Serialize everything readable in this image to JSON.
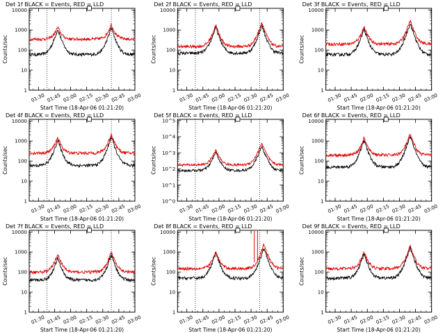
{
  "colors": {
    "events": "#000000",
    "lld": "#e00000",
    "frame": "#000000"
  },
  "layout": {
    "rows": 3,
    "cols": 3
  },
  "chart_data": [
    {
      "type": "line",
      "title": "Det 1f BLACK = Events, RED = LLD",
      "xlabel": "Start Time (18-Apr-06 01:21:20)",
      "ylabel": "Counts/sec",
      "y_scale": "log",
      "ylim": [
        1,
        12000
      ],
      "xlim": [
        "01:21:20",
        "03:00:00"
      ],
      "xticks": [
        "01:30",
        "01:45",
        "02:00",
        "02:15",
        "02:30",
        "02:45",
        "03:00"
      ],
      "yticks": [
        "1",
        "10",
        "100",
        "1000",
        "10000"
      ],
      "markers": [
        "01:38",
        "02:38"
      ],
      "series": [
        {
          "key": "events",
          "role": "events",
          "baseline": 60,
          "peaks": [
            {
              "t": "01:48",
              "v": 1100
            },
            {
              "t": "02:38",
              "v": 1300
            }
          ]
        },
        {
          "key": "lld",
          "role": "lld",
          "baseline": 350,
          "peaks": [
            {
              "t": "01:48",
              "v": 1400
            },
            {
              "t": "02:38",
              "v": 1900
            }
          ]
        }
      ]
    },
    {
      "type": "line",
      "title": "Det 2f BLACK = Events, RED = LLD",
      "xlabel": "Start Time (18-Apr-06 01:21:20)",
      "ylabel": "Counts/sec",
      "y_scale": "log",
      "ylim": [
        1,
        12000
      ],
      "xlim": [
        "01:21:20",
        "03:00:00"
      ],
      "xticks": [
        "01:30",
        "01:45",
        "02:00",
        "02:15",
        "02:30",
        "02:45",
        "03:00"
      ],
      "yticks": [
        "1",
        "10",
        "100",
        "1000",
        "10000"
      ],
      "markers": [
        "01:38",
        "02:38"
      ],
      "series": [
        {
          "key": "events",
          "role": "events",
          "baseline": 70,
          "peaks": [
            {
              "t": "01:57",
              "v": 1400
            },
            {
              "t": "02:40",
              "v": 1700
            }
          ]
        },
        {
          "key": "lld",
          "role": "lld",
          "baseline": 150,
          "peaks": [
            {
              "t": "01:57",
              "v": 1800
            },
            {
              "t": "02:40",
              "v": 2400
            }
          ]
        }
      ]
    },
    {
      "type": "line",
      "title": "Det 3f BLACK = Events, RED = LLD",
      "xlabel": "Start Time (18-Apr-06 01:21:20)",
      "ylabel": "Counts/sec",
      "y_scale": "log",
      "ylim": [
        1,
        12000
      ],
      "xlim": [
        "01:21:20",
        "03:00:00"
      ],
      "xticks": [
        "01:30",
        "01:45",
        "02:00",
        "02:15",
        "02:30",
        "02:45",
        "03:00"
      ],
      "yticks": [
        "1",
        "10",
        "100",
        "1000",
        "10000"
      ],
      "markers": [],
      "series": [
        {
          "key": "events",
          "role": "events",
          "baseline": 60,
          "peaks": [
            {
              "t": "01:57",
              "v": 1100
            },
            {
              "t": "02:40",
              "v": 2200
            }
          ]
        },
        {
          "key": "lld",
          "role": "lld",
          "baseline": 200,
          "peaks": [
            {
              "t": "01:57",
              "v": 1500
            },
            {
              "t": "02:40",
              "v": 3000
            }
          ]
        }
      ]
    },
    {
      "type": "line",
      "title": "Det 4f BLACK = Events, RED = LLD",
      "xlabel": "Start Time (18-Apr-06 01:21:20)",
      "ylabel": "Counts/sec",
      "y_scale": "log",
      "ylim": [
        1,
        12000
      ],
      "xlim": [
        "01:21:20",
        "03:00:00"
      ],
      "xticks": [
        "01:30",
        "01:45",
        "02:00",
        "02:15",
        "02:30",
        "02:45",
        "03:00"
      ],
      "yticks": [
        "1",
        "10",
        "100",
        "1000",
        "10000"
      ],
      "markers": [
        "01:38",
        "02:38"
      ],
      "series": [
        {
          "key": "events",
          "role": "events",
          "baseline": 60,
          "peaks": [
            {
              "t": "01:48",
              "v": 1100
            },
            {
              "t": "02:38",
              "v": 1600
            }
          ]
        },
        {
          "key": "lld",
          "role": "lld",
          "baseline": 250,
          "peaks": [
            {
              "t": "01:48",
              "v": 1500
            },
            {
              "t": "02:38",
              "v": 2200
            }
          ]
        }
      ]
    },
    {
      "type": "line",
      "title": "Det 5f BLACK = Events, RED = LLD",
      "xlabel": "Start Time (18-Apr-06 01:21:20)",
      "ylabel": "Counts/sec",
      "y_scale": "log",
      "ylim": [
        1,
        120000
      ],
      "xlim": [
        "01:21:20",
        "03:00:00"
      ],
      "xticks": [
        "01:30",
        "01:45",
        "02:00",
        "02:15",
        "02:30",
        "02:45",
        "03:00"
      ],
      "yticks": [
        "10^0",
        "10^1",
        "10^2",
        "10^3",
        "10^4",
        "10^5"
      ],
      "markers": [
        "01:38",
        "02:38"
      ],
      "series": [
        {
          "key": "events",
          "role": "events",
          "baseline": 80,
          "peaks": [
            {
              "t": "01:57",
              "v": 1100
            },
            {
              "t": "02:40",
              "v": 2500
            }
          ]
        },
        {
          "key": "lld",
          "role": "lld",
          "baseline": 180,
          "peaks": [
            {
              "t": "01:57",
              "v": 1500
            },
            {
              "t": "02:40",
              "v": 4000
            }
          ]
        }
      ]
    },
    {
      "type": "line",
      "title": "Det 6f BLACK = Events, RED = LLD",
      "xlabel": "Start Time (18-Apr-06 01:21:20)",
      "ylabel": "Counts/sec",
      "y_scale": "log",
      "ylim": [
        1,
        12000
      ],
      "xlim": [
        "01:21:20",
        "03:00:00"
      ],
      "xticks": [
        "01:30",
        "01:45",
        "02:00",
        "02:15",
        "02:30",
        "02:45",
        "03:00"
      ],
      "yticks": [
        "1",
        "10",
        "100",
        "1000",
        "10000"
      ],
      "markers": [],
      "series": [
        {
          "key": "events",
          "role": "events",
          "baseline": 50,
          "peaks": [
            {
              "t": "01:57",
              "v": 1100
            },
            {
              "t": "02:40",
              "v": 1800
            }
          ]
        },
        {
          "key": "lld",
          "role": "lld",
          "baseline": 200,
          "peaks": [
            {
              "t": "01:57",
              "v": 1400
            },
            {
              "t": "02:40",
              "v": 2200
            }
          ]
        }
      ]
    },
    {
      "type": "line",
      "title": "Det 7f BLACK = Events, RED = LLD",
      "xlabel": "Start Time (18-Apr-06 01:21:20)",
      "ylabel": "Counts/sec",
      "y_scale": "log",
      "ylim": [
        1,
        12000
      ],
      "xlim": [
        "01:21:20",
        "03:00:00"
      ],
      "xticks": [
        "01:30",
        "01:45",
        "02:00",
        "02:15",
        "02:30",
        "02:45",
        "03:00"
      ],
      "yticks": [
        "1",
        "10",
        "100",
        "1000",
        "10000"
      ],
      "markers": [
        "01:38",
        "02:38"
      ],
      "series": [
        {
          "key": "events",
          "role": "events",
          "baseline": 40,
          "peaks": [
            {
              "t": "01:48",
              "v": 500
            },
            {
              "t": "02:38",
              "v": 700
            }
          ]
        },
        {
          "key": "lld",
          "role": "lld",
          "baseline": 100,
          "peaks": [
            {
              "t": "01:48",
              "v": 800
            },
            {
              "t": "02:38",
              "v": 1000
            }
          ]
        }
      ]
    },
    {
      "type": "line",
      "title": "Det 8f BLACK = Events, RED = LLD",
      "xlabel": "Start Time (18-Apr-06 01:21:20)",
      "ylabel": "Counts/sec",
      "y_scale": "log",
      "ylim": [
        1,
        12000
      ],
      "xlim": [
        "01:21:20",
        "03:00:00"
      ],
      "xticks": [
        "01:30",
        "01:45",
        "02:00",
        "02:15",
        "02:30",
        "02:45",
        "03:00"
      ],
      "yticks": [
        "1",
        "10",
        "100",
        "1000",
        "10000"
      ],
      "markers": [
        "01:38",
        "02:38"
      ],
      "spikes": [
        "02:33",
        "02:36"
      ],
      "series": [
        {
          "key": "events",
          "role": "events",
          "baseline": 50,
          "peaks": [
            {
              "t": "01:57",
              "v": 900
            },
            {
              "t": "02:42",
              "v": 1600
            }
          ]
        },
        {
          "key": "lld",
          "role": "lld",
          "baseline": 150,
          "peaks": [
            {
              "t": "01:57",
              "v": 1000
            },
            {
              "t": "02:42",
              "v": 2400
            }
          ]
        }
      ]
    },
    {
      "type": "line",
      "title": "Det 9f BLACK = Events, RED = LLD",
      "xlabel": "Start Time (18-Apr-06 01:21:20)",
      "ylabel": "Counts/sec",
      "y_scale": "log",
      "ylim": [
        1,
        12000
      ],
      "xlim": [
        "01:21:20",
        "03:00:00"
      ],
      "xticks": [
        "01:30",
        "01:45",
        "02:00",
        "02:15",
        "02:30",
        "02:45",
        "03:00"
      ],
      "yticks": [
        "1",
        "10",
        "100",
        "1000",
        "10000"
      ],
      "markers": [],
      "series": [
        {
          "key": "events",
          "role": "events",
          "baseline": 50,
          "peaks": [
            {
              "t": "01:57",
              "v": 800
            },
            {
              "t": "02:40",
              "v": 1700
            }
          ]
        },
        {
          "key": "lld",
          "role": "lld",
          "baseline": 150,
          "peaks": [
            {
              "t": "01:57",
              "v": 1000
            },
            {
              "t": "02:40",
              "v": 2000
            }
          ]
        }
      ]
    }
  ]
}
